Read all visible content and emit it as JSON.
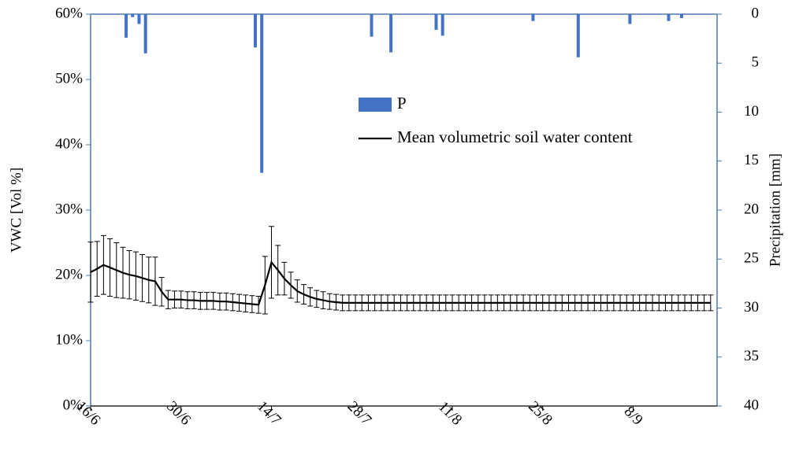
{
  "chart_data": {
    "type": "combo",
    "y_label": "VWC [Vol %]",
    "y2_label": "Precipitation [mm]",
    "categories": [
      "16/6",
      null,
      null,
      null,
      null,
      null,
      null,
      null,
      null,
      null,
      null,
      null,
      null,
      null,
      "30/6",
      null,
      null,
      null,
      null,
      null,
      null,
      null,
      null,
      null,
      null,
      null,
      null,
      null,
      "14/7",
      null,
      null,
      null,
      null,
      null,
      null,
      null,
      null,
      null,
      null,
      null,
      null,
      null,
      "28/7",
      null,
      null,
      null,
      null,
      null,
      null,
      null,
      null,
      null,
      null,
      null,
      null,
      null,
      "11/8",
      null,
      null,
      null,
      null,
      null,
      null,
      null,
      null,
      null,
      null,
      null,
      null,
      null,
      "25/8",
      null,
      null,
      null,
      null,
      null,
      null,
      null,
      null,
      null,
      null,
      null,
      null,
      null,
      "8/9",
      null,
      null,
      null,
      null,
      null,
      null,
      null,
      null,
      null,
      null,
      null,
      null
    ],
    "series": [
      {
        "name": "P",
        "type": "bar",
        "axis": "y2",
        "color": "#4472c4",
        "values": [
          0,
          0,
          0,
          0,
          0,
          2.4,
          0.3,
          1.0,
          4.0,
          0,
          0,
          0,
          0,
          0,
          0,
          0,
          0,
          0,
          0,
          0,
          0,
          0,
          0,
          0,
          0,
          3.4,
          16.2,
          0,
          0,
          0,
          0,
          0,
          0,
          0,
          0,
          0,
          0,
          0,
          0,
          0,
          0,
          0,
          0,
          2.3,
          0,
          0,
          3.9,
          0,
          0,
          0,
          0,
          0,
          0,
          1.6,
          2.2,
          0,
          0,
          0,
          0,
          0,
          0,
          0,
          0,
          0,
          0,
          0,
          0,
          0,
          0.7,
          0,
          0,
          0,
          0,
          0,
          0,
          4.4,
          0,
          0,
          0,
          0,
          0,
          0,
          0,
          1.0,
          0,
          0,
          0,
          0,
          0,
          0.7,
          0,
          0.4,
          0,
          0,
          0,
          0,
          0
        ]
      },
      {
        "name": "Mean volumetric soil water content",
        "type": "line",
        "axis": "y",
        "color": "#000000",
        "values": [
          20.5,
          21.0,
          21.6,
          21.2,
          20.8,
          20.4,
          20.1,
          19.9,
          19.6,
          19.3,
          19.1,
          17.5,
          16.3,
          16.3,
          16.3,
          16.2,
          16.2,
          16.1,
          16.1,
          16.1,
          16.0,
          16.0,
          15.9,
          15.8,
          15.7,
          15.6,
          15.5,
          18.5,
          22.0,
          20.8,
          19.5,
          18.5,
          17.6,
          17.1,
          16.7,
          16.4,
          16.2,
          16.0,
          15.9,
          15.8,
          15.8,
          15.8,
          15.8,
          15.8,
          15.8,
          15.8,
          15.8,
          15.8,
          15.8,
          15.8,
          15.8,
          15.8,
          15.8,
          15.8,
          15.8,
          15.8,
          15.8,
          15.8,
          15.8,
          15.8,
          15.8,
          15.8,
          15.8,
          15.8,
          15.8,
          15.8,
          15.8,
          15.8,
          15.8,
          15.8,
          15.8,
          15.8,
          15.8,
          15.8,
          15.8,
          15.8,
          15.8,
          15.8,
          15.8,
          15.8,
          15.8,
          15.8,
          15.8,
          15.8,
          15.8,
          15.8,
          15.8,
          15.8,
          15.8,
          15.8,
          15.8,
          15.8,
          15.8,
          15.8,
          15.8,
          15.8,
          15.8
        ],
        "errors": [
          4.6,
          4.2,
          4.5,
          4.4,
          4.2,
          3.9,
          3.7,
          3.7,
          3.6,
          3.5,
          3.7,
          2.2,
          1.4,
          1.3,
          1.3,
          1.3,
          1.3,
          1.3,
          1.3,
          1.3,
          1.3,
          1.3,
          1.3,
          1.3,
          1.3,
          1.3,
          1.3,
          4.4,
          5.5,
          3.8,
          2.5,
          2.0,
          1.7,
          1.5,
          1.4,
          1.3,
          1.3,
          1.2,
          1.2,
          1.2,
          1.2,
          1.2,
          1.2,
          1.2,
          1.2,
          1.2,
          1.2,
          1.2,
          1.2,
          1.2,
          1.2,
          1.2,
          1.2,
          1.2,
          1.2,
          1.2,
          1.2,
          1.2,
          1.2,
          1.2,
          1.2,
          1.2,
          1.2,
          1.2,
          1.2,
          1.2,
          1.2,
          1.2,
          1.2,
          1.2,
          1.2,
          1.2,
          1.2,
          1.2,
          1.2,
          1.2,
          1.2,
          1.2,
          1.2,
          1.2,
          1.2,
          1.2,
          1.2,
          1.2,
          1.2,
          1.2,
          1.2,
          1.2,
          1.2,
          1.2,
          1.2,
          1.2,
          1.2,
          1.2,
          1.2,
          1.2,
          1.2
        ]
      }
    ],
    "ylim": [
      0,
      60
    ],
    "yticks": [
      {
        "value": 0,
        "label": "0%"
      },
      {
        "value": 10,
        "label": "10%"
      },
      {
        "value": 20,
        "label": "20%"
      },
      {
        "value": 30,
        "label": "30%"
      },
      {
        "value": 40,
        "label": "40%"
      },
      {
        "value": 50,
        "label": "50%"
      },
      {
        "value": 60,
        "label": "60%"
      }
    ],
    "y2lim": [
      0,
      40
    ],
    "y2_inverted": true,
    "y2ticks": [
      0,
      5,
      10,
      15,
      20,
      25,
      30,
      35,
      40
    ]
  }
}
